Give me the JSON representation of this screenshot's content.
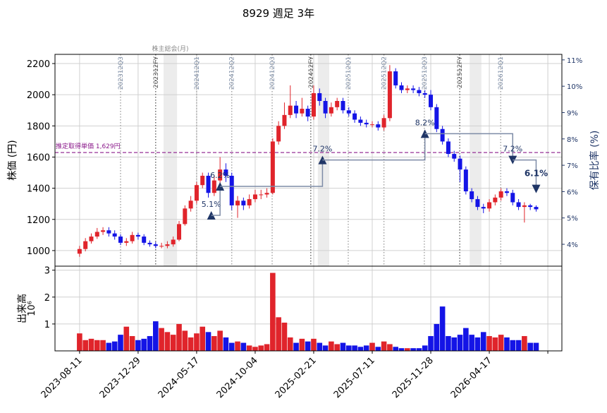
{
  "chart_data": {
    "type": "candlestick",
    "title": "8929 週足 3年",
    "ylabel": "株価 (円)",
    "y2label": "保有比率 (%)",
    "xlim": [
      -8.4,
      164.8
    ],
    "xticks": [
      {
        "value": 0,
        "label": "2023-08-11"
      },
      {
        "value": 20,
        "label": "2023-12-29"
      },
      {
        "value": 40,
        "label": "2024-05-17"
      },
      {
        "value": 60,
        "label": "2024-10-04"
      },
      {
        "value": 80,
        "label": "2025-02-21"
      },
      {
        "value": 100,
        "label": "2025-07-11"
      },
      {
        "value": 120,
        "label": "2025-11-28"
      },
      {
        "value": 140,
        "label": "2026-04-17"
      },
      {
        "value": 160,
        "label": null
      }
    ],
    "ylim": [
      900,
      2259
    ],
    "yticks": [
      1000,
      1200,
      1400,
      1600,
      1800,
      2000,
      2200
    ],
    "y2lim": [
      3.17,
      11.21
    ],
    "y2ticks": [
      {
        "value": 4,
        "label": "4%"
      },
      {
        "value": 5,
        "label": "5%"
      },
      {
        "value": 6,
        "label": "6%"
      },
      {
        "value": 7,
        "label": "7%"
      },
      {
        "value": 8,
        "label": "8%"
      },
      {
        "value": 9,
        "label": "9%"
      },
      {
        "value": 10,
        "label": "10%"
      },
      {
        "value": 11,
        "label": "11%"
      }
    ],
    "grid": true,
    "up_color": "#e0242b",
    "down_color": "#1414e6",
    "x": [
      0,
      2,
      4,
      6,
      8,
      10,
      12,
      14,
      16,
      18,
      20,
      22,
      24,
      26,
      28,
      30,
      32,
      34,
      36,
      38,
      40,
      42,
      44,
      46,
      48,
      50,
      52,
      54,
      56,
      58,
      60,
      62,
      64,
      66,
      68,
      70,
      72,
      74,
      76,
      78,
      80,
      82,
      84,
      86,
      88,
      90,
      92,
      94,
      96,
      98,
      100,
      102,
      104,
      106,
      108,
      110,
      112,
      114,
      116,
      118,
      120,
      122,
      124,
      126,
      128,
      130,
      132,
      134,
      136,
      138,
      140,
      142,
      144,
      146,
      148,
      150,
      152,
      154,
      156
    ],
    "open": [
      980,
      1010,
      1060,
      1090,
      1120,
      1130,
      1110,
      1090,
      1050,
      1060,
      1100,
      1090,
      1050,
      1040,
      1030,
      1030,
      1040,
      1070,
      1170,
      1270,
      1320,
      1420,
      1480,
      1370,
      1450,
      1520,
      1480,
      1290,
      1320,
      1290,
      1330,
      1360,
      1360,
      1370,
      1700,
      1800,
      1870,
      1930,
      1880,
      1910,
      1860,
      2010,
      1960,
      1880,
      1920,
      1960,
      1900,
      1880,
      1840,
      1820,
      1810,
      1810,
      1790,
      1850,
      2150,
      2060,
      2030,
      2040,
      2030,
      2010,
      2000,
      1920,
      1780,
      1700,
      1620,
      1590,
      1520,
      1380,
      1330,
      1280,
      1270,
      1310,
      1340,
      1380,
      1370,
      1310,
      1280,
      1290,
      1280
    ],
    "high": [
      1030,
      1080,
      1110,
      1145,
      1150,
      1150,
      1130,
      1105,
      1080,
      1120,
      1115,
      1105,
      1065,
      1055,
      1050,
      1060,
      1090,
      1190,
      1290,
      1350,
      1440,
      1500,
      1500,
      1480,
      1600,
      1560,
      1500,
      1350,
      1340,
      1360,
      1390,
      1390,
      1400,
      1720,
      1830,
      1950,
      2060,
      1960,
      1980,
      1930,
      2060,
      2040,
      1980,
      1950,
      1980,
      1980,
      1920,
      1900,
      1860,
      1840,
      1830,
      1830,
      1870,
      2190,
      2170,
      2080,
      2060,
      2060,
      2050,
      2030,
      2030,
      1940,
      1800,
      1720,
      1640,
      1610,
      1540,
      1400,
      1350,
      1300,
      1330,
      1360,
      1400,
      1400,
      1390,
      1330,
      1310,
      1300,
      1290
    ],
    "low": [
      960,
      995,
      1045,
      1075,
      1100,
      1090,
      1070,
      1035,
      1030,
      1045,
      1070,
      1035,
      1025,
      1015,
      1015,
      1015,
      1025,
      1060,
      1160,
      1250,
      1300,
      1400,
      1340,
      1350,
      1430,
      1440,
      1260,
      1210,
      1260,
      1270,
      1310,
      1330,
      1340,
      1360,
      1680,
      1780,
      1850,
      1850,
      1860,
      1830,
      1840,
      1930,
      1850,
      1860,
      1900,
      1880,
      1860,
      1820,
      1800,
      1790,
      1790,
      1770,
      1770,
      1830,
      2040,
      2010,
      2010,
      2010,
      1990,
      1980,
      1900,
      1760,
      1680,
      1600,
      1570,
      1440,
      1360,
      1310,
      1260,
      1240,
      1250,
      1290,
      1320,
      1350,
      1290,
      1260,
      1180,
      1260,
      1250
    ],
    "close": [
      1010,
      1060,
      1090,
      1120,
      1130,
      1110,
      1090,
      1050,
      1060,
      1100,
      1090,
      1050,
      1040,
      1030,
      1030,
      1040,
      1070,
      1170,
      1270,
      1320,
      1420,
      1480,
      1370,
      1450,
      1520,
      1480,
      1290,
      1320,
      1290,
      1330,
      1360,
      1360,
      1370,
      1700,
      1800,
      1870,
      1930,
      1880,
      1910,
      1860,
      2010,
      1960,
      1880,
      1920,
      1960,
      1900,
      1880,
      1840,
      1820,
      1810,
      1810,
      1790,
      1850,
      2150,
      2060,
      2030,
      2040,
      2030,
      2010,
      2000,
      1920,
      1780,
      1700,
      1620,
      1590,
      1520,
      1380,
      1330,
      1280,
      1270,
      1310,
      1340,
      1380,
      1370,
      1310,
      1280,
      1290,
      1280,
      1265
    ],
    "volume": {
      "label": "出来高",
      "offset_label": "10⁶",
      "ylim": [
        0,
        3.15
      ],
      "yticks": [
        1,
        2,
        3
      ],
      "values": [
        0.65,
        0.4,
        0.45,
        0.4,
        0.4,
        0.3,
        0.35,
        0.6,
        0.9,
        0.55,
        0.4,
        0.45,
        0.55,
        1.1,
        0.85,
        0.7,
        0.6,
        1.0,
        0.75,
        0.5,
        0.65,
        0.9,
        0.7,
        0.55,
        0.75,
        0.5,
        0.3,
        0.35,
        0.3,
        0.2,
        0.15,
        0.2,
        0.25,
        2.9,
        1.25,
        1.05,
        0.5,
        0.3,
        0.45,
        0.35,
        0.45,
        0.3,
        0.2,
        0.35,
        0.25,
        0.3,
        0.2,
        0.2,
        0.15,
        0.2,
        0.3,
        0.15,
        0.35,
        0.25,
        0.15,
        0.1,
        0.1,
        0.1,
        0.1,
        0.2,
        0.55,
        1.0,
        1.65,
        0.55,
        0.5,
        0.6,
        0.85,
        0.6,
        0.5,
        0.7,
        0.55,
        0.5,
        0.6,
        0.5,
        0.4,
        0.4,
        0.55,
        0.3,
        0.3
      ]
    },
    "ownership": {
      "color": "#7d8ba6",
      "marker_color": "#1f3566",
      "x": [
        45,
        48,
        83,
        118,
        148,
        156
      ],
      "values": [
        5.1,
        6.2,
        7.2,
        8.2,
        7.2,
        6.1
      ],
      "value_labels": [
        "5.1%",
        "6.2%",
        "7.2%",
        "8.2%",
        "7.2%",
        "6.1%"
      ]
    },
    "reference": {
      "value": 1629,
      "label": "推定取得単価 1,629円",
      "color": "#8b1a8b"
    },
    "events": [
      {
        "x": 14,
        "label": "202312Q3"
      },
      {
        "x": 26,
        "label": "202312FY"
      },
      {
        "x": 40,
        "label": "202412Q1"
      },
      {
        "x": 52,
        "label": "202412Q2"
      },
      {
        "x": 65.8,
        "label": "202412Q3"
      },
      {
        "x": 79,
        "label": "202412FY"
      },
      {
        "x": 91.8,
        "label": "202512Q1"
      },
      {
        "x": 104,
        "label": "202512Q2"
      },
      {
        "x": 117.8,
        "label": "202512Q3"
      },
      {
        "x": 129.9,
        "label": "202512FY"
      },
      {
        "x": 143.9,
        "label": "202612Q1"
      }
    ],
    "meetings": {
      "label": "株主総会(月)",
      "ranges": [
        [
          28.7,
          33.3
        ],
        [
          81.4,
          85.3
        ],
        [
          133.3,
          137.3
        ]
      ]
    }
  }
}
